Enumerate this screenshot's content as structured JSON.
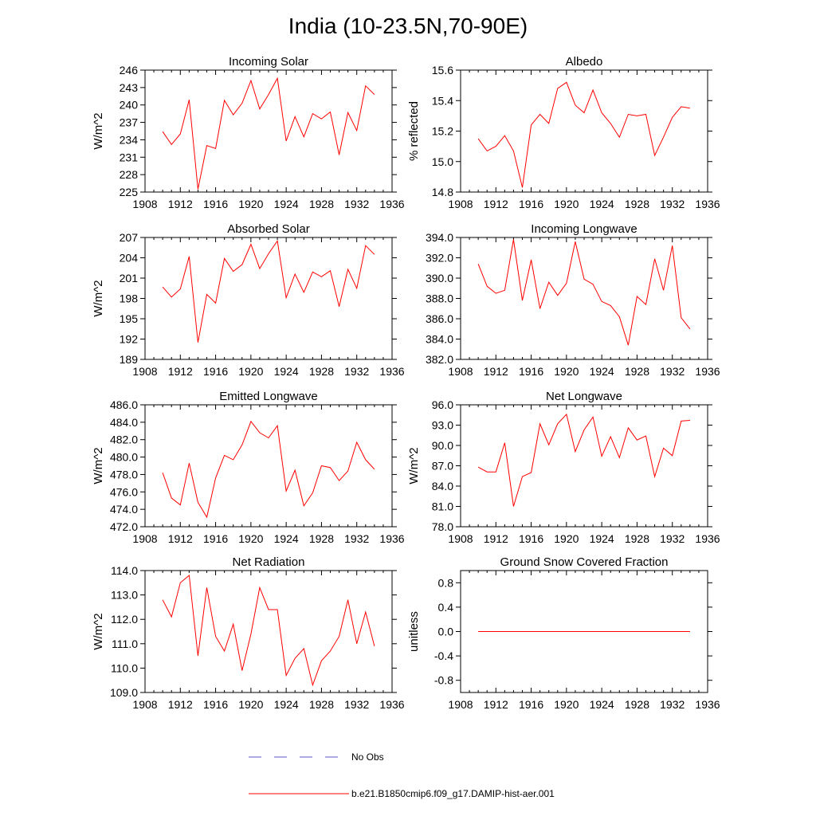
{
  "figure": {
    "title": "India (10-23.5N,70-90E)",
    "legend": [
      {
        "label": "No Obs",
        "color": "#5a5acd",
        "style": "dashed"
      },
      {
        "label": "b.e21.B1850cmip6.f09_g17.DAMIP-hist-aer.001",
        "color": "#ff0000",
        "style": "solid"
      }
    ]
  },
  "chart_data": [
    {
      "type": "line",
      "title": "Incoming Solar",
      "ylabel": "W/m^2",
      "xlim": [
        1908,
        1936
      ],
      "ylim": [
        225,
        246
      ],
      "xticks": [
        1908,
        1912,
        1916,
        1920,
        1924,
        1928,
        1932,
        1936
      ],
      "yticks": [
        225,
        228,
        231,
        234,
        237,
        240,
        243,
        246
      ],
      "ytick_labels": [
        "225",
        "228",
        "231",
        "234",
        "237",
        "240",
        "243",
        "246"
      ],
      "series": [
        {
          "color": "#ff0000",
          "x": [
            1910,
            1911,
            1912,
            1913,
            1914,
            1915,
            1916,
            1917,
            1918,
            1919,
            1920,
            1921,
            1922,
            1923,
            1924,
            1925,
            1926,
            1927,
            1928,
            1929,
            1930,
            1931,
            1932,
            1933,
            1934
          ],
          "y": [
            235.4,
            233.2,
            235.0,
            240.9,
            225.5,
            233.0,
            232.5,
            240.8,
            238.3,
            240.3,
            244.2,
            239.3,
            241.8,
            244.6,
            233.8,
            238.0,
            234.5,
            238.5,
            237.6,
            238.8,
            231.4,
            238.7,
            235.6,
            243.3,
            241.8
          ]
        }
      ]
    },
    {
      "type": "line",
      "title": "Albedo",
      "ylabel": "% reflected",
      "xlim": [
        1908,
        1936
      ],
      "ylim": [
        14.8,
        15.6
      ],
      "xticks": [
        1908,
        1912,
        1916,
        1920,
        1924,
        1928,
        1932,
        1936
      ],
      "yticks": [
        14.8,
        15.0,
        15.2,
        15.4,
        15.6
      ],
      "ytick_labels": [
        "14.8",
        "15.0",
        "15.2",
        "15.4",
        "15.6"
      ],
      "series": [
        {
          "color": "#ff0000",
          "x": [
            1910,
            1911,
            1912,
            1913,
            1914,
            1915,
            1916,
            1917,
            1918,
            1919,
            1920,
            1921,
            1922,
            1923,
            1924,
            1925,
            1926,
            1927,
            1928,
            1929,
            1930,
            1931,
            1932,
            1933,
            1934
          ],
          "y": [
            15.15,
            15.07,
            15.1,
            15.17,
            15.07,
            14.83,
            15.24,
            15.31,
            15.25,
            15.48,
            15.52,
            15.37,
            15.32,
            15.47,
            15.32,
            15.25,
            15.16,
            15.31,
            15.3,
            15.31,
            15.04,
            15.16,
            15.29,
            15.36,
            15.35
          ]
        }
      ]
    },
    {
      "type": "line",
      "title": "Absorbed Solar",
      "ylabel": "W/m^2",
      "xlim": [
        1908,
        1936
      ],
      "ylim": [
        189,
        207
      ],
      "xticks": [
        1908,
        1912,
        1916,
        1920,
        1924,
        1928,
        1932,
        1936
      ],
      "yticks": [
        189,
        192,
        195,
        198,
        201,
        204,
        207
      ],
      "ytick_labels": [
        "189",
        "192",
        "195",
        "198",
        "201",
        "204",
        "207"
      ],
      "series": [
        {
          "color": "#ff0000",
          "x": [
            1910,
            1911,
            1912,
            1913,
            1914,
            1915,
            1916,
            1917,
            1918,
            1919,
            1920,
            1921,
            1922,
            1923,
            1924,
            1925,
            1926,
            1927,
            1928,
            1929,
            1930,
            1931,
            1932,
            1933,
            1934
          ],
          "y": [
            199.7,
            198.2,
            199.4,
            204.2,
            191.5,
            198.6,
            197.3,
            203.9,
            202.0,
            203.0,
            206.0,
            202.4,
            204.6,
            206.5,
            198.1,
            201.6,
            198.9,
            201.9,
            201.2,
            202.1,
            196.8,
            202.3,
            199.5,
            205.8,
            204.5
          ]
        }
      ]
    },
    {
      "type": "line",
      "title": "Incoming Longwave",
      "ylabel": "",
      "xlim": [
        1908,
        1936
      ],
      "ylim": [
        382,
        394
      ],
      "xticks": [
        1908,
        1912,
        1916,
        1920,
        1924,
        1928,
        1932,
        1936
      ],
      "yticks": [
        382,
        384,
        386,
        388,
        390,
        392,
        394
      ],
      "ytick_labels": [
        "382.0",
        "384.0",
        "386.0",
        "388.0",
        "390.0",
        "392.0",
        "394.0"
      ],
      "series": [
        {
          "color": "#ff0000",
          "x": [
            1910,
            1911,
            1912,
            1913,
            1914,
            1915,
            1916,
            1917,
            1918,
            1919,
            1920,
            1921,
            1922,
            1923,
            1924,
            1925,
            1926,
            1927,
            1928,
            1929,
            1930,
            1931,
            1932,
            1933,
            1934
          ],
          "y": [
            391.4,
            389.2,
            388.5,
            388.8,
            393.8,
            387.8,
            391.8,
            387.0,
            389.6,
            388.3,
            389.5,
            393.6,
            389.9,
            389.4,
            387.7,
            387.3,
            386.2,
            383.4,
            388.2,
            387.4,
            391.9,
            388.8,
            393.2,
            386.1,
            385.0
          ]
        }
      ]
    },
    {
      "type": "line",
      "title": "Emitted Longwave",
      "ylabel": "W/m^2",
      "xlim": [
        1908,
        1936
      ],
      "ylim": [
        472,
        486
      ],
      "xticks": [
        1908,
        1912,
        1916,
        1920,
        1924,
        1928,
        1932,
        1936
      ],
      "yticks": [
        472,
        474,
        476,
        478,
        480,
        482,
        484,
        486
      ],
      "ytick_labels": [
        "472.0",
        "474.0",
        "476.0",
        "478.0",
        "480.0",
        "482.0",
        "484.0",
        "486.0"
      ],
      "series": [
        {
          "color": "#ff0000",
          "x": [
            1910,
            1911,
            1912,
            1913,
            1914,
            1915,
            1916,
            1917,
            1918,
            1919,
            1920,
            1921,
            1922,
            1923,
            1924,
            1925,
            1926,
            1927,
            1928,
            1929,
            1930,
            1931,
            1932,
            1933,
            1934
          ],
          "y": [
            478.2,
            475.3,
            474.5,
            479.3,
            474.8,
            473.1,
            477.6,
            480.2,
            479.7,
            481.4,
            484.1,
            482.8,
            482.2,
            483.6,
            476.1,
            478.5,
            474.4,
            475.9,
            479.0,
            478.8,
            477.3,
            478.4,
            481.7,
            479.7,
            478.6
          ]
        }
      ]
    },
    {
      "type": "line",
      "title": "Net Longwave",
      "ylabel": "W/m^2",
      "xlim": [
        1908,
        1936
      ],
      "ylim": [
        78,
        96
      ],
      "xticks": [
        1908,
        1912,
        1916,
        1920,
        1924,
        1928,
        1932,
        1936
      ],
      "yticks": [
        78,
        81,
        84,
        87,
        90,
        93,
        96
      ],
      "ytick_labels": [
        "78.0",
        "81.0",
        "84.0",
        "87.0",
        "90.0",
        "93.0",
        "96.0"
      ],
      "series": [
        {
          "color": "#ff0000",
          "x": [
            1910,
            1911,
            1912,
            1913,
            1914,
            1915,
            1916,
            1917,
            1918,
            1919,
            1920,
            1921,
            1922,
            1923,
            1924,
            1925,
            1926,
            1927,
            1928,
            1929,
            1930,
            1931,
            1932,
            1933,
            1934
          ],
          "y": [
            86.8,
            86.1,
            86.1,
            90.4,
            81.0,
            85.4,
            86.0,
            93.2,
            90.1,
            93.2,
            94.6,
            89.1,
            92.3,
            94.2,
            88.4,
            91.3,
            88.2,
            92.6,
            90.8,
            91.4,
            85.4,
            89.6,
            88.5,
            93.6,
            93.7
          ]
        }
      ]
    },
    {
      "type": "line",
      "title": "Net Radiation",
      "ylabel": "W/m^2",
      "xlim": [
        1908,
        1936
      ],
      "ylim": [
        109,
        114
      ],
      "xticks": [
        1908,
        1912,
        1916,
        1920,
        1924,
        1928,
        1932,
        1936
      ],
      "yticks": [
        109,
        110,
        111,
        112,
        113,
        114
      ],
      "ytick_labels": [
        "109.0",
        "110.0",
        "111.0",
        "112.0",
        "113.0",
        "114.0"
      ],
      "series": [
        {
          "color": "#ff0000",
          "x": [
            1910,
            1911,
            1912,
            1913,
            1914,
            1915,
            1916,
            1917,
            1918,
            1919,
            1920,
            1921,
            1922,
            1923,
            1924,
            1925,
            1926,
            1927,
            1928,
            1929,
            1930,
            1931,
            1932,
            1933,
            1934
          ],
          "y": [
            112.8,
            112.1,
            113.5,
            113.8,
            110.5,
            113.3,
            111.3,
            110.7,
            111.8,
            109.9,
            111.4,
            113.3,
            112.4,
            112.4,
            109.7,
            110.4,
            110.8,
            109.3,
            110.3,
            110.7,
            111.3,
            112.8,
            111.0,
            112.3,
            110.9
          ]
        }
      ]
    },
    {
      "type": "line",
      "title": "Ground Snow Covered Fraction",
      "ylabel": "unitless",
      "xlim": [
        1908,
        1936
      ],
      "ylim": [
        -1.0,
        1.0
      ],
      "xticks": [
        1908,
        1912,
        1916,
        1920,
        1924,
        1928,
        1932,
        1936
      ],
      "yticks": [
        -0.8,
        -0.4,
        0.0,
        0.4,
        0.8
      ],
      "ytick_labels": [
        "-0.8",
        "-0.4",
        "0.0",
        "0.4",
        "0.8"
      ],
      "series": [
        {
          "color": "#ff0000",
          "x": [
            1910,
            1934
          ],
          "y": [
            0.0,
            0.0
          ]
        }
      ]
    }
  ]
}
